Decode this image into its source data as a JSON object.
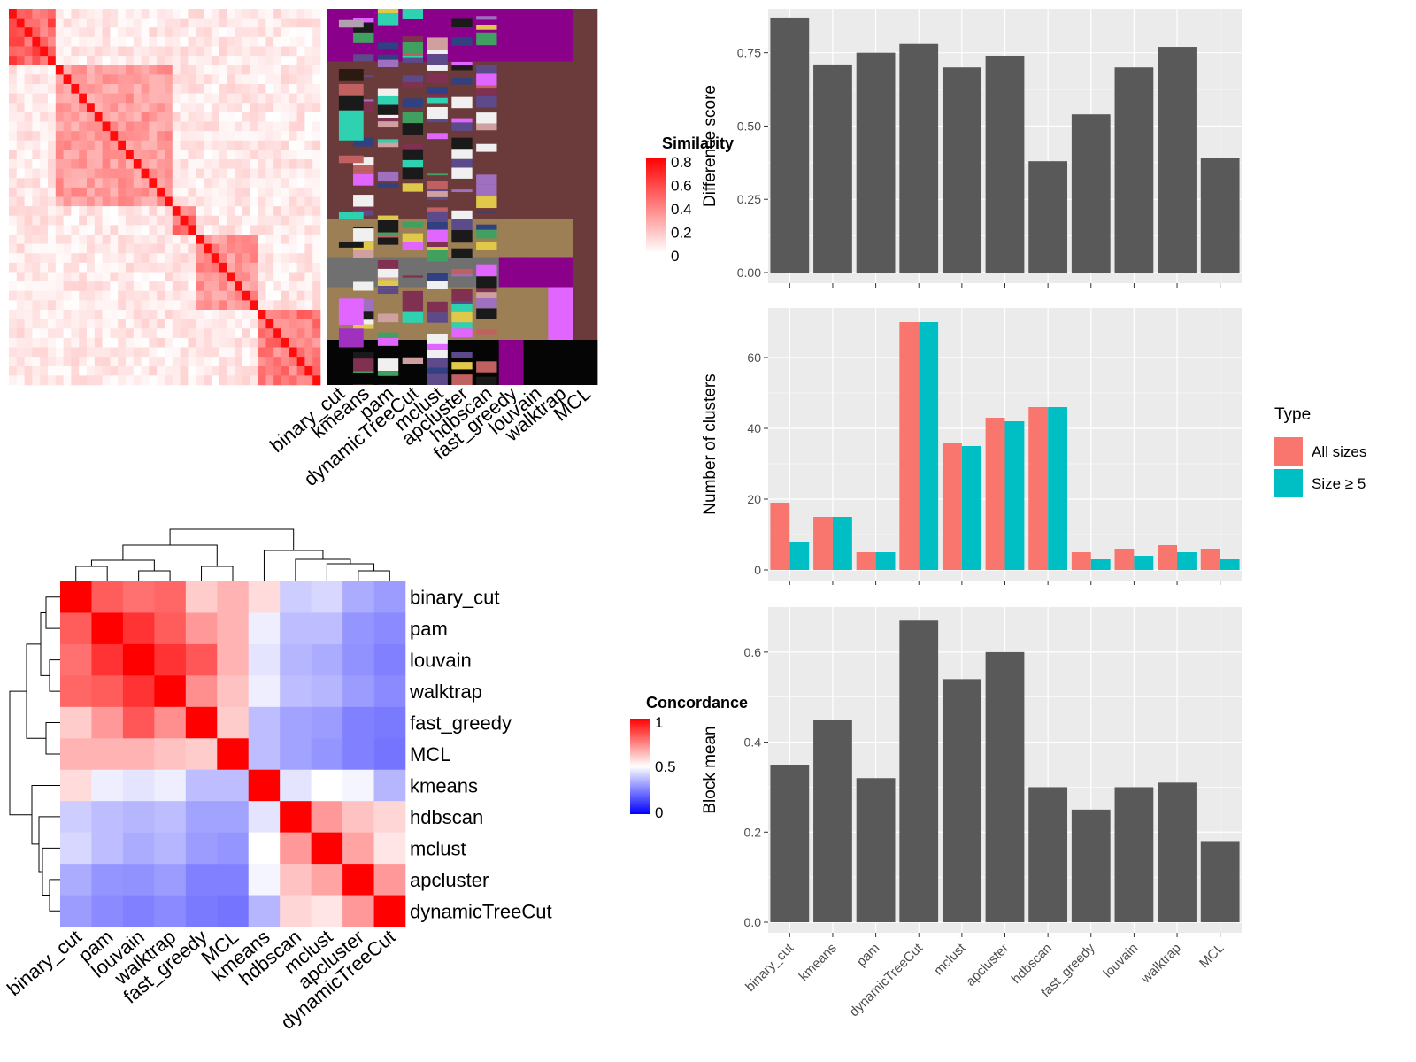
{
  "colors": {
    "bar": "#595959",
    "panel_bg": "#ebebeb",
    "grid": "#ffffff",
    "all_sizes": "#f8766d",
    "size_ge5": "#00bfc4",
    "sim_high": "#ff0000",
    "sim_low": "#ffffff",
    "conc_high": "#ff0000",
    "conc_mid": "#ffffff",
    "conc_low": "#0000ff"
  },
  "chart_data": [
    {
      "type": "heatmap",
      "id": "similarity_heatmap",
      "legend_title": "Similarity",
      "legend_ticks": [
        "0.8",
        "0.6",
        "0.4",
        "0.2",
        "0"
      ],
      "column_labels": [
        "binary_cut",
        "kmeans",
        "pam",
        "dynamicTreeCut",
        "mclust",
        "apcluster",
        "hdbscan",
        "fast_greedy",
        "louvain",
        "walktrap",
        "MCL"
      ],
      "diagonal_blocks": [
        {
          "start": 0.0,
          "end": 0.14,
          "level": 0.8
        },
        {
          "start": 0.14,
          "end": 0.52,
          "level": 0.5
        },
        {
          "start": 0.52,
          "end": 0.61,
          "level": 0.7
        },
        {
          "start": 0.61,
          "end": 0.8,
          "level": 0.55
        },
        {
          "start": 0.8,
          "end": 1.0,
          "level": 0.65
        }
      ]
    },
    {
      "type": "heatmap",
      "id": "concordance_heatmap",
      "legend_title": "Concordance",
      "legend_ticks": [
        "1",
        "0.5",
        "0"
      ],
      "rows": [
        "binary_cut",
        "pam",
        "louvain",
        "walktrap",
        "fast_greedy",
        "MCL",
        "kmeans",
        "hdbscan",
        "mclust",
        "apcluster",
        "dynamicTreeCut"
      ],
      "columns": [
        "binary_cut",
        "pam",
        "louvain",
        "walktrap",
        "fast_greedy",
        "MCL",
        "kmeans",
        "hdbscan",
        "mclust",
        "apcluster",
        "dynamicTreeCut"
      ],
      "values": [
        [
          1.0,
          0.82,
          0.78,
          0.8,
          0.6,
          0.65,
          0.57,
          0.35,
          0.38,
          0.25,
          0.2
        ],
        [
          0.82,
          1.0,
          0.9,
          0.82,
          0.7,
          0.65,
          0.45,
          0.3,
          0.3,
          0.18,
          0.15
        ],
        [
          0.78,
          0.9,
          1.0,
          0.9,
          0.83,
          0.65,
          0.42,
          0.28,
          0.25,
          0.17,
          0.12
        ],
        [
          0.8,
          0.82,
          0.9,
          1.0,
          0.72,
          0.62,
          0.45,
          0.3,
          0.28,
          0.2,
          0.15
        ],
        [
          0.6,
          0.7,
          0.83,
          0.72,
          1.0,
          0.6,
          0.3,
          0.22,
          0.2,
          0.12,
          0.1
        ],
        [
          0.65,
          0.65,
          0.65,
          0.62,
          0.6,
          1.0,
          0.3,
          0.22,
          0.18,
          0.12,
          0.08
        ],
        [
          0.57,
          0.45,
          0.42,
          0.45,
          0.3,
          0.3,
          1.0,
          0.42,
          0.5,
          0.47,
          0.28
        ],
        [
          0.35,
          0.3,
          0.28,
          0.3,
          0.22,
          0.22,
          0.42,
          1.0,
          0.7,
          0.62,
          0.58
        ],
        [
          0.38,
          0.3,
          0.25,
          0.28,
          0.2,
          0.18,
          0.5,
          0.7,
          1.0,
          0.68,
          0.55
        ],
        [
          0.25,
          0.18,
          0.17,
          0.2,
          0.12,
          0.12,
          0.47,
          0.62,
          0.68,
          1.0,
          0.7
        ],
        [
          0.2,
          0.15,
          0.12,
          0.15,
          0.1,
          0.08,
          0.28,
          0.58,
          0.55,
          0.7,
          1.0
        ]
      ]
    },
    {
      "type": "bar",
      "id": "difference_score",
      "categories": [
        "binary_cut",
        "kmeans",
        "pam",
        "dynamicTreeCut",
        "mclust",
        "apcluster",
        "hdbscan",
        "fast_greedy",
        "louvain",
        "walktrap",
        "MCL"
      ],
      "values": [
        0.87,
        0.71,
        0.75,
        0.78,
        0.7,
        0.74,
        0.38,
        0.54,
        0.7,
        0.77,
        0.39
      ],
      "ylabel": "Difference score",
      "ylim": [
        0,
        0.9
      ],
      "yticks": [
        "0.00",
        "0.25",
        "0.50",
        "0.75"
      ],
      "grid": true
    },
    {
      "type": "bar",
      "id": "number_of_clusters",
      "categories": [
        "binary_cut",
        "kmeans",
        "pam",
        "dynamicTreeCut",
        "mclust",
        "apcluster",
        "hdbscan",
        "fast_greedy",
        "louvain",
        "walktrap",
        "MCL"
      ],
      "series": [
        {
          "name": "All sizes",
          "values": [
            19,
            15,
            5,
            70,
            36,
            43,
            46,
            5,
            6,
            7,
            6
          ]
        },
        {
          "name": "Size ≥ 5",
          "values": [
            8,
            15,
            5,
            70,
            35,
            42,
            46,
            3,
            4,
            5,
            3
          ]
        }
      ],
      "ylabel": "Number of clusters",
      "ylim": [
        0,
        74
      ],
      "yticks": [
        "0",
        "20",
        "40",
        "60"
      ],
      "legend_title": "Type",
      "legend_position": "right",
      "grid": true
    },
    {
      "type": "bar",
      "id": "block_mean",
      "categories": [
        "binary_cut",
        "kmeans",
        "pam",
        "dynamicTreeCut",
        "mclust",
        "apcluster",
        "hdbscan",
        "fast_greedy",
        "louvain",
        "walktrap",
        "MCL"
      ],
      "values": [
        0.35,
        0.45,
        0.32,
        0.67,
        0.54,
        0.6,
        0.3,
        0.25,
        0.3,
        0.31,
        0.18
      ],
      "ylabel": "Block mean",
      "ylim": [
        0,
        0.7
      ],
      "yticks": [
        "0.0",
        "0.2",
        "0.4",
        "0.6"
      ],
      "grid": true
    }
  ]
}
